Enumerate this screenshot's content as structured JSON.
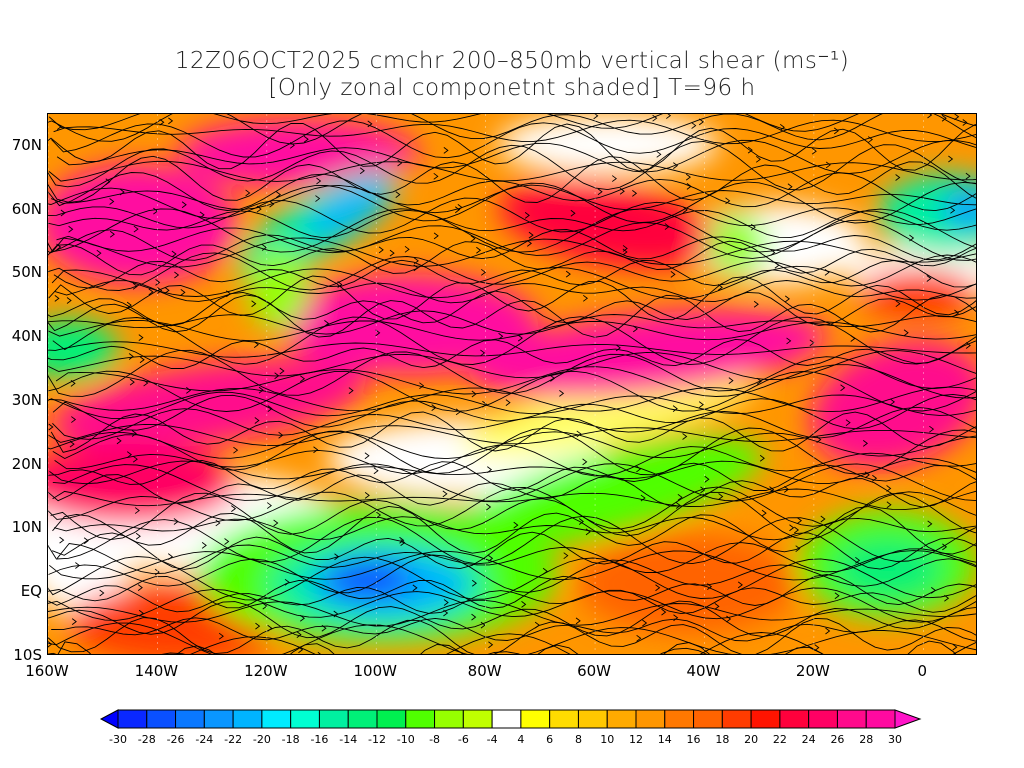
{
  "title": {
    "line1": "12Z06OCT2025 cmchr 200–850mb vertical shear (ms⁻¹)",
    "line2": "[Only zonal componetnt shaded] T=96 h"
  },
  "map": {
    "lat_labels": [
      {
        "lat": -10,
        "label": "10S"
      },
      {
        "lat": 0,
        "label": "EQ"
      },
      {
        "lat": 10,
        "label": "10N"
      },
      {
        "lat": 20,
        "label": "20N"
      },
      {
        "lat": 30,
        "label": "30N"
      },
      {
        "lat": 40,
        "label": "40N"
      },
      {
        "lat": 50,
        "label": "50N"
      },
      {
        "lat": 60,
        "label": "60N"
      },
      {
        "lat": 70,
        "label": "70N"
      }
    ],
    "lon_labels": [
      {
        "lon": -160,
        "label": "160W"
      },
      {
        "lon": -140,
        "label": "140W"
      },
      {
        "lon": -120,
        "label": "120W"
      },
      {
        "lon": -100,
        "label": "100W"
      },
      {
        "lon": -80,
        "label": "80W"
      },
      {
        "lon": -60,
        "label": "60W"
      },
      {
        "lon": -40,
        "label": "40W"
      },
      {
        "lon": -20,
        "label": "20W"
      },
      {
        "lon": 0,
        "label": "0"
      }
    ],
    "extent": {
      "lon": [
        -160,
        10
      ],
      "lat": [
        -10,
        75
      ]
    }
  },
  "colorbar": {
    "labels": [
      "-30",
      "-28",
      "-26",
      "-24",
      "-22",
      "-20",
      "-18",
      "-16",
      "-14",
      "-12",
      "-10",
      "-8",
      "-6",
      "-4",
      "4",
      "6",
      "8",
      "10",
      "12",
      "14",
      "16",
      "18",
      "20",
      "22",
      "24",
      "26",
      "28",
      "30"
    ],
    "under_color": "#0000ff",
    "over_color": "#ff14c8",
    "colors": [
      "#0a28ff",
      "#0a50ff",
      "#0a78ff",
      "#0a96ff",
      "#00b4ff",
      "#00ebff",
      "#00ffd2",
      "#00f0a0",
      "#00f078",
      "#00f050",
      "#50ff00",
      "#96ff00",
      "#c0ff00",
      "#ffffff",
      "#ffff00",
      "#ffdc00",
      "#ffc800",
      "#ffaa00",
      "#ff9600",
      "#ff7800",
      "#ff6400",
      "#ff3c00",
      "#ff1400",
      "#ff003c",
      "#ff0064",
      "#ff0a8c",
      "#ff0aa0"
    ]
  }
}
